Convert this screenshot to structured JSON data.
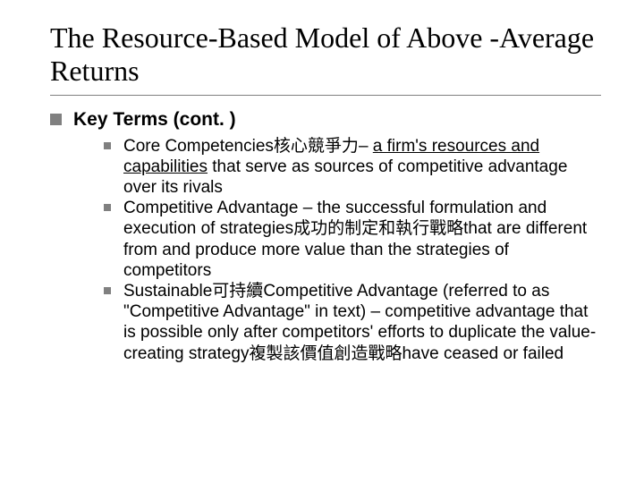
{
  "title": "The Resource-Based Model of Above -Average Returns",
  "heading": "Key Terms (cont. )",
  "items": [
    {
      "term": "Core Competencies",
      "term_cjk": "核心競爭力",
      "sep": "– ",
      "underlined": "a firm's resources and capabilities",
      "rest": " that serve as sources of competitive advantage over its rivals"
    },
    {
      "term": "Competitive Advantage ",
      "sep": "– ",
      "rest1": "the successful formulation and execution of strategies",
      "cjk": "成功的制定和執行戰略",
      "rest2": "that are different from and produce more value than the strategies of competitors"
    },
    {
      "term": "Sustainable",
      "term_cjk": "可持續",
      "term2": "Competitive Advantage ",
      "rest1": "(referred to as \"Competitive Advantage\" in text) – competitive advantage that is possible only after competitors' efforts to duplicate the value-creating strategy",
      "cjk": "複製該價值創造戰略",
      "rest2": "have ceased or failed"
    }
  ],
  "colors": {
    "bullet": "#808080",
    "rule": "#808080",
    "text": "#000000",
    "background": "#ffffff"
  },
  "fonts": {
    "title_family": "Times New Roman",
    "body_family": "Arial",
    "title_size_pt": 32,
    "h1_size_pt": 21,
    "body_size_pt": 19
  }
}
